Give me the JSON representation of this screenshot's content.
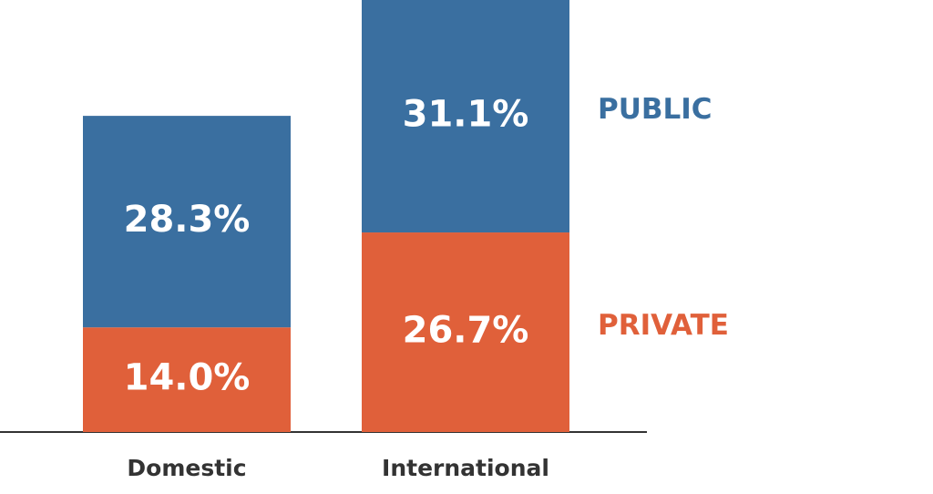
{
  "chart_data": {
    "type": "stacked-bar",
    "categories": [
      "Domestic",
      "International"
    ],
    "series": [
      {
        "name": "PRIVATE",
        "color": "#e0603a",
        "values": [
          14.0,
          26.7
        ],
        "value_labels": [
          "14.0%",
          "26.7%"
        ]
      },
      {
        "name": "PUBLIC",
        "color": "#3a6fa0",
        "values": [
          28.3,
          31.1
        ],
        "value_labels": [
          "28.3%",
          "31.1%"
        ]
      }
    ]
  }
}
